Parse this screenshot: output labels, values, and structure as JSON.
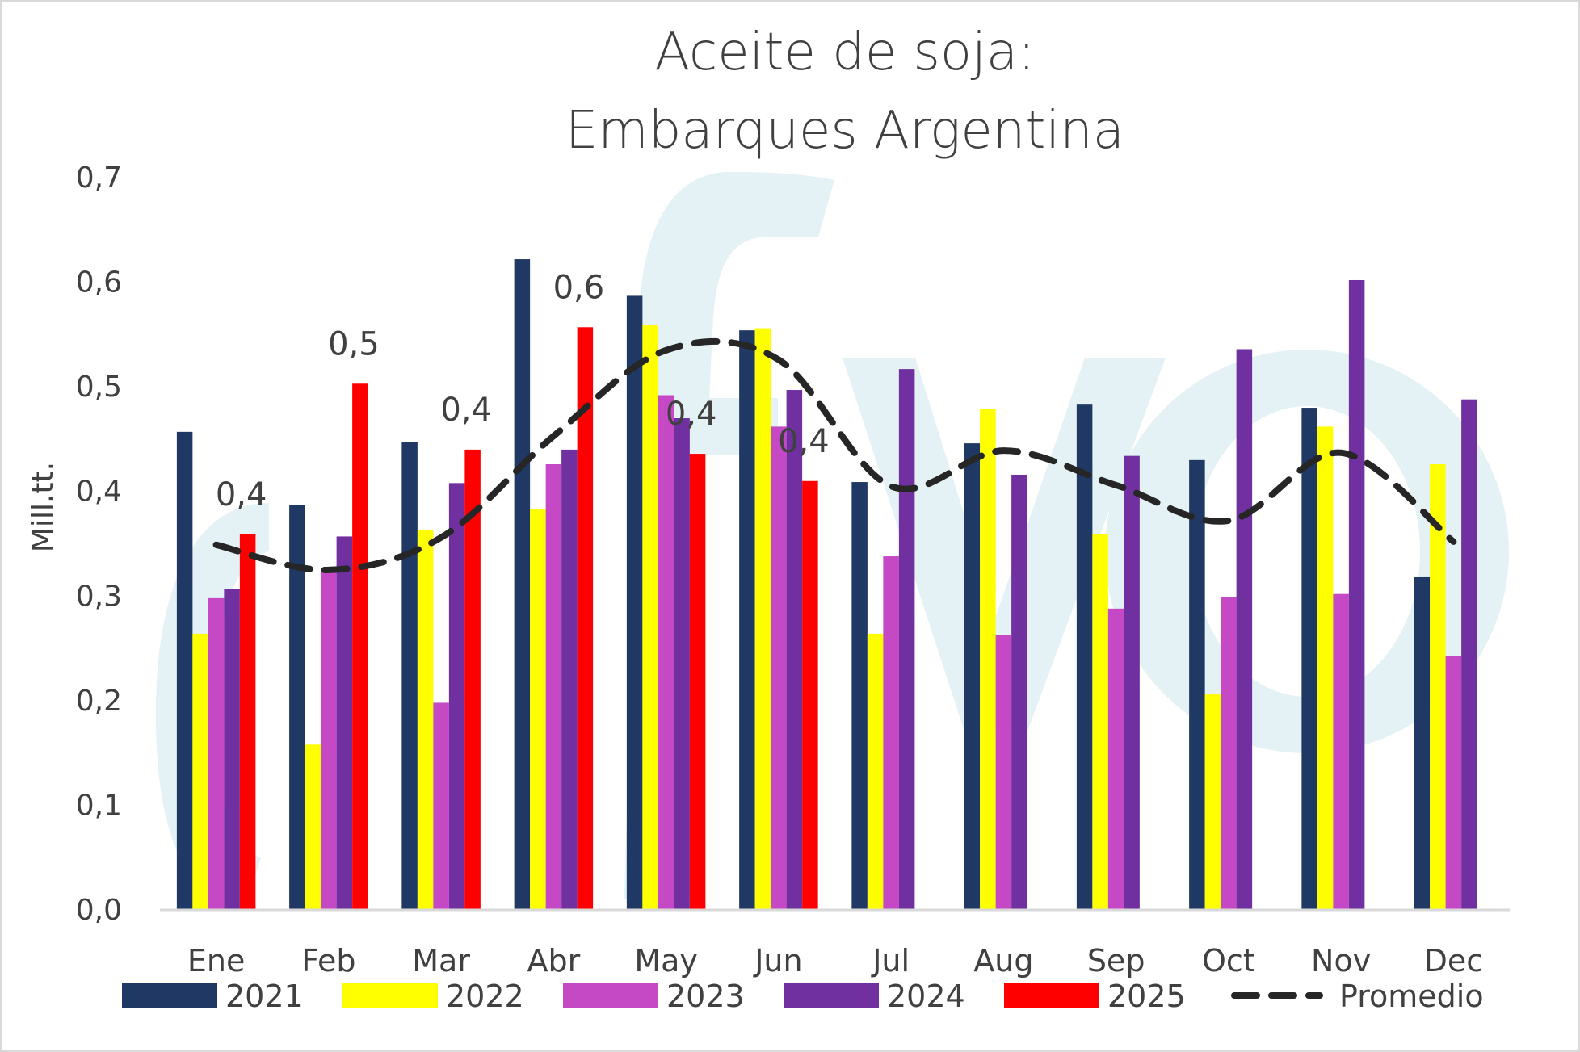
{
  "chart_data": {
    "type": "bar",
    "title": "Aceite de soja:",
    "subtitle": "Embarques Argentina",
    "ylabel": "Mill.tt.",
    "xlabel": "",
    "ylim": [
      0,
      0.7
    ],
    "yticks": [
      "0,0",
      "0,1",
      "0,2",
      "0,3",
      "0,4",
      "0,5",
      "0,6",
      "0,7"
    ],
    "grid": false,
    "legend_position": "bottom",
    "categories": [
      "Ene",
      "Feb",
      "Mar",
      "Abr",
      "May",
      "Jun",
      "Jul",
      "Aug",
      "Sep",
      "Oct",
      "Nov",
      "Dec"
    ],
    "series": [
      {
        "name": "2021",
        "color": "#1f3864",
        "values": [
          0.457,
          0.387,
          0.447,
          0.622,
          0.587,
          0.554,
          0.409,
          0.446,
          0.483,
          0.43,
          0.48,
          0.318
        ]
      },
      {
        "name": "2022",
        "color": "#ffff00",
        "values": [
          0.264,
          0.158,
          0.363,
          0.383,
          0.559,
          0.556,
          0.264,
          0.479,
          0.359,
          0.206,
          0.462,
          0.426
        ]
      },
      {
        "name": "2023",
        "color": "#c548c5",
        "values": [
          0.298,
          0.326,
          0.198,
          0.426,
          0.492,
          0.462,
          0.338,
          0.263,
          0.288,
          0.299,
          0.302,
          0.243
        ]
      },
      {
        "name": "2024",
        "color": "#7030a0",
        "values": [
          0.307,
          0.357,
          0.408,
          0.44,
          0.47,
          0.497,
          0.517,
          0.416,
          0.434,
          0.536,
          0.602,
          0.488
        ]
      },
      {
        "name": "2025",
        "color": "#ff0000",
        "values": [
          0.359,
          0.503,
          0.44,
          0.557,
          0.436,
          0.41,
          null,
          null,
          null,
          null,
          null,
          null
        ],
        "data_labels": [
          "0,4",
          "0,5",
          "0,4",
          "0,6",
          "0,4",
          "0,4"
        ]
      }
    ],
    "line_series": {
      "name": "Promedio",
      "color": "#262626",
      "style": "dashed",
      "values": [
        0.349,
        0.325,
        0.356,
        0.453,
        0.535,
        0.526,
        0.405,
        0.439,
        0.406,
        0.372,
        0.437,
        0.352
      ]
    }
  }
}
